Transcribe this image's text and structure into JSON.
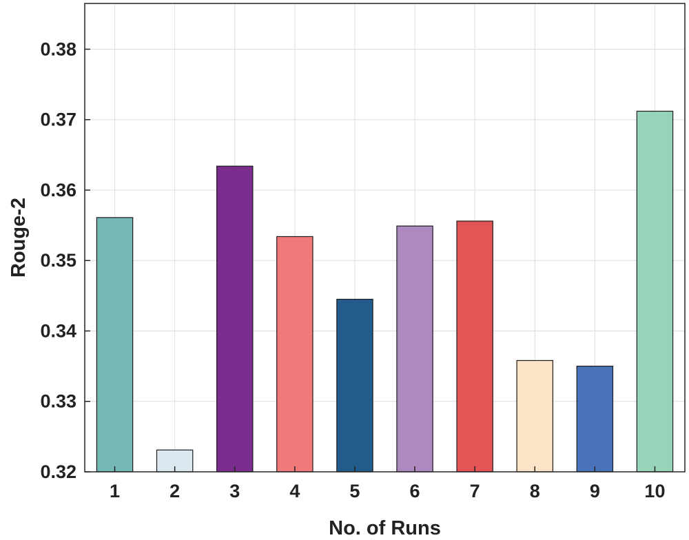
{
  "chart_data": {
    "type": "bar",
    "title": "",
    "xlabel": "No. of Runs",
    "ylabel": "Rouge-2",
    "categories": [
      "1",
      "2",
      "3",
      "4",
      "5",
      "6",
      "7",
      "8",
      "9",
      "10"
    ],
    "values": [
      0.3561,
      0.3231,
      0.3634,
      0.3534,
      0.3445,
      0.3549,
      0.3556,
      0.3358,
      0.335,
      0.3712
    ],
    "colors": [
      "#74b9b3",
      "#dce8ef",
      "#7b2d8e",
      "#f07a7a",
      "#235c8c",
      "#ad89c0",
      "#e35555",
      "#fde3c7",
      "#4a72b8",
      "#97d3b8"
    ],
    "ylim": [
      0.32,
      0.3865
    ],
    "yticks": [
      "0.32",
      "0.33",
      "0.34",
      "0.35",
      "0.36",
      "0.37",
      "0.38"
    ],
    "grid": true,
    "legend": "none"
  }
}
